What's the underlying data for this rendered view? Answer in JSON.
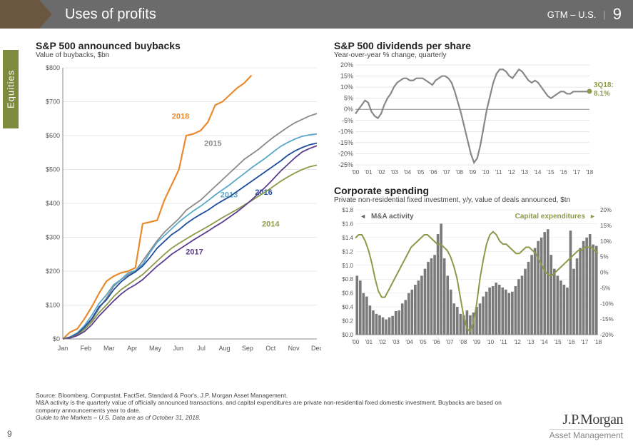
{
  "header": {
    "title": "Uses of profits",
    "gtm": "GTM – U.S.",
    "page": "9"
  },
  "sideTab": "Equities",
  "buybacks": {
    "title": "S&P 500 announced buybacks",
    "subtitle": "Value of buybacks, $bn",
    "type": "line",
    "xTicks": [
      "Jan",
      "Feb",
      "Mar",
      "Apr",
      "May",
      "Jun",
      "Jul",
      "Aug",
      "Sep",
      "Oct",
      "Nov",
      "Dec"
    ],
    "yMin": 0,
    "yMax": 800,
    "yStep": 100,
    "yPrefix": "$",
    "gridColor": "#cfcfcf",
    "series": [
      {
        "name": "2018",
        "color": "#e98a2e",
        "width": 2.2,
        "labelX": 5.1,
        "labelY": 650,
        "data": [
          0,
          20,
          30,
          60,
          95,
          135,
          170,
          185,
          195,
          200,
          210,
          340,
          345,
          350,
          410,
          455,
          500,
          600,
          605,
          615,
          640,
          690,
          700,
          720,
          740,
          755,
          778,
          null,
          null,
          null,
          null,
          null,
          null,
          null,
          null,
          null
        ]
      },
      {
        "name": "2015",
        "color": "#8a8a8a",
        "width": 1.8,
        "labelX": 6.5,
        "labelY": 570,
        "data": [
          0,
          5,
          12,
          30,
          55,
          90,
          120,
          155,
          175,
          190,
          200,
          230,
          260,
          290,
          315,
          335,
          355,
          380,
          395,
          410,
          430,
          450,
          470,
          490,
          510,
          530,
          545,
          560,
          578,
          595,
          610,
          625,
          638,
          648,
          658,
          665
        ]
      },
      {
        "name": "2013",
        "color": "#5aa7c9",
        "width": 1.8,
        "labelX": 7.2,
        "labelY": 418,
        "data": [
          0,
          6,
          18,
          40,
          70,
          105,
          130,
          160,
          175,
          195,
          202,
          220,
          255,
          285,
          305,
          325,
          345,
          362,
          378,
          392,
          408,
          425,
          440,
          455,
          472,
          488,
          505,
          520,
          535,
          552,
          568,
          580,
          590,
          598,
          602,
          605
        ]
      },
      {
        "name": "2016",
        "color": "#1f4e9c",
        "width": 1.8,
        "labelX": 8.7,
        "labelY": 425,
        "data": [
          0,
          5,
          15,
          35,
          60,
          95,
          115,
          145,
          168,
          185,
          198,
          215,
          240,
          268,
          288,
          308,
          322,
          340,
          355,
          368,
          380,
          395,
          408,
          420,
          435,
          450,
          465,
          480,
          495,
          510,
          525,
          542,
          555,
          565,
          573,
          578
        ]
      },
      {
        "name": "2014",
        "color": "#8c9a4a",
        "width": 1.8,
        "labelX": 9.0,
        "labelY": 332,
        "data": [
          0,
          4,
          12,
          28,
          50,
          78,
          100,
          125,
          145,
          160,
          175,
          190,
          210,
          230,
          250,
          268,
          282,
          295,
          308,
          320,
          332,
          345,
          358,
          370,
          382,
          395,
          408,
          422,
          435,
          450,
          465,
          478,
          490,
          500,
          508,
          513
        ]
      },
      {
        "name": "2017",
        "color": "#5a3d8f",
        "width": 1.8,
        "labelX": 5.7,
        "labelY": 250,
        "data": [
          0,
          3,
          10,
          22,
          42,
          68,
          90,
          112,
          132,
          148,
          160,
          175,
          195,
          215,
          232,
          250,
          264,
          278,
          292,
          305,
          318,
          332,
          345,
          360,
          375,
          392,
          410,
          430,
          450,
          472,
          495,
          515,
          535,
          552,
          562,
          570
        ]
      }
    ]
  },
  "dividends": {
    "title": "S&P 500 dividends per share",
    "subtitle": "Year-over-year % change, quarterly",
    "type": "line",
    "yMin": -25,
    "yMax": 20,
    "yStep": 5,
    "ySuffix": "%",
    "xTicks": [
      "'00",
      "'01",
      "'02",
      "'03",
      "'04",
      "'05",
      "'06",
      "'07",
      "'08",
      "'09",
      "'10",
      "'11",
      "'12",
      "'13",
      "'14",
      "'15",
      "'16",
      "'17",
      "'18"
    ],
    "gridColor": "#cfcfcf",
    "lineColor": "#888888",
    "lineWidth": 2.2,
    "data": [
      -2,
      0,
      2,
      4,
      3,
      -1,
      -3,
      -4,
      -2,
      2,
      5,
      7,
      10,
      12,
      13,
      14,
      14,
      13,
      13,
      14,
      14,
      14,
      13,
      12,
      11,
      13,
      14,
      15,
      15,
      14,
      12,
      8,
      3,
      -2,
      -8,
      -14,
      -20,
      -24,
      -22,
      -16,
      -8,
      0,
      6,
      12,
      16,
      18,
      18,
      17,
      15,
      14,
      16,
      18,
      17,
      15,
      13,
      12,
      13,
      12,
      10,
      8,
      6,
      5,
      6,
      7,
      8,
      8,
      7,
      7,
      8,
      8,
      8,
      8,
      8,
      8.1
    ],
    "endpoint": {
      "label": "3Q18:",
      "value": "8.1%",
      "color": "#8c9a4a",
      "dotColor": "#8c9a4a"
    }
  },
  "corpSpend": {
    "title": "Corporate spending",
    "subtitle": "Private non-residential fixed investment, y/y, value of deals announced, $tn",
    "type": "bar+line",
    "leftMin": 0.0,
    "leftMax": 1.8,
    "leftStep": 0.2,
    "leftPrefix": "$",
    "rightMin": -20,
    "rightMax": 20,
    "rightStep": 5,
    "rightSuffix": "%",
    "xTicks": [
      "'00",
      "'01",
      "'02",
      "'03",
      "'04",
      "'05",
      "'06",
      "'07",
      "'08",
      "'09",
      "'10",
      "'11",
      "'12",
      "'13",
      "'14",
      "'15",
      "'16",
      "'17",
      "'18"
    ],
    "barColor": "#7a7a7a",
    "barLabel": "M&A activity",
    "lineColor": "#8c9a4a",
    "lineLabel": "Capital expenditures",
    "bars": [
      0.85,
      0.78,
      0.6,
      0.55,
      0.42,
      0.35,
      0.3,
      0.28,
      0.25,
      0.22,
      0.25,
      0.27,
      0.34,
      0.35,
      0.45,
      0.5,
      0.6,
      0.65,
      0.72,
      0.78,
      0.85,
      0.95,
      1.05,
      1.1,
      1.15,
      1.45,
      1.6,
      1.1,
      0.85,
      0.65,
      0.45,
      0.4,
      0.3,
      0.28,
      0.35,
      0.28,
      0.32,
      0.4,
      0.45,
      0.55,
      0.62,
      0.68,
      0.7,
      0.75,
      0.72,
      0.68,
      0.65,
      0.6,
      0.62,
      0.7,
      0.8,
      0.85,
      0.95,
      1.05,
      1.15,
      1.25,
      1.35,
      1.4,
      1.48,
      1.52,
      1.15,
      0.95,
      0.85,
      0.78,
      0.72,
      0.68,
      1.5,
      0.95,
      1.1,
      1.25,
      1.35,
      1.4,
      1.45,
      1.3,
      1.28
    ],
    "line": [
      11,
      12,
      12,
      10,
      7,
      3,
      -2,
      -6,
      -8,
      -8,
      -6,
      -4,
      -2,
      0,
      2,
      4,
      6,
      8,
      9,
      10,
      11,
      12,
      12,
      11,
      10,
      9,
      9,
      8,
      7,
      5,
      2,
      -2,
      -8,
      -14,
      -18,
      -19,
      -16,
      -10,
      -2,
      4,
      9,
      12,
      13,
      12,
      10,
      9,
      9,
      8,
      7,
      6,
      6,
      7,
      8,
      8,
      7,
      6,
      4,
      2,
      0,
      -1,
      -1,
      0,
      1,
      2,
      3,
      4,
      5,
      6,
      7,
      7,
      8,
      8,
      8,
      7,
      6
    ]
  },
  "footer": {
    "l1": "Source: Bloomberg, Compustat, FactSet, Standard & Poor's, J.P. Morgan Asset Management.",
    "l2": "M&A activity is the quarterly value of officially announced transactions, and capital expenditures are private non-residential fixed domestic investment. Buybacks are based on company announcements year to date.",
    "l3": "Guide to the Markets – U.S. Data are as of October 31, 2018."
  },
  "logo": {
    "top": "J.P.Morgan",
    "bottom": "Asset Management"
  },
  "pageBottom": "9"
}
